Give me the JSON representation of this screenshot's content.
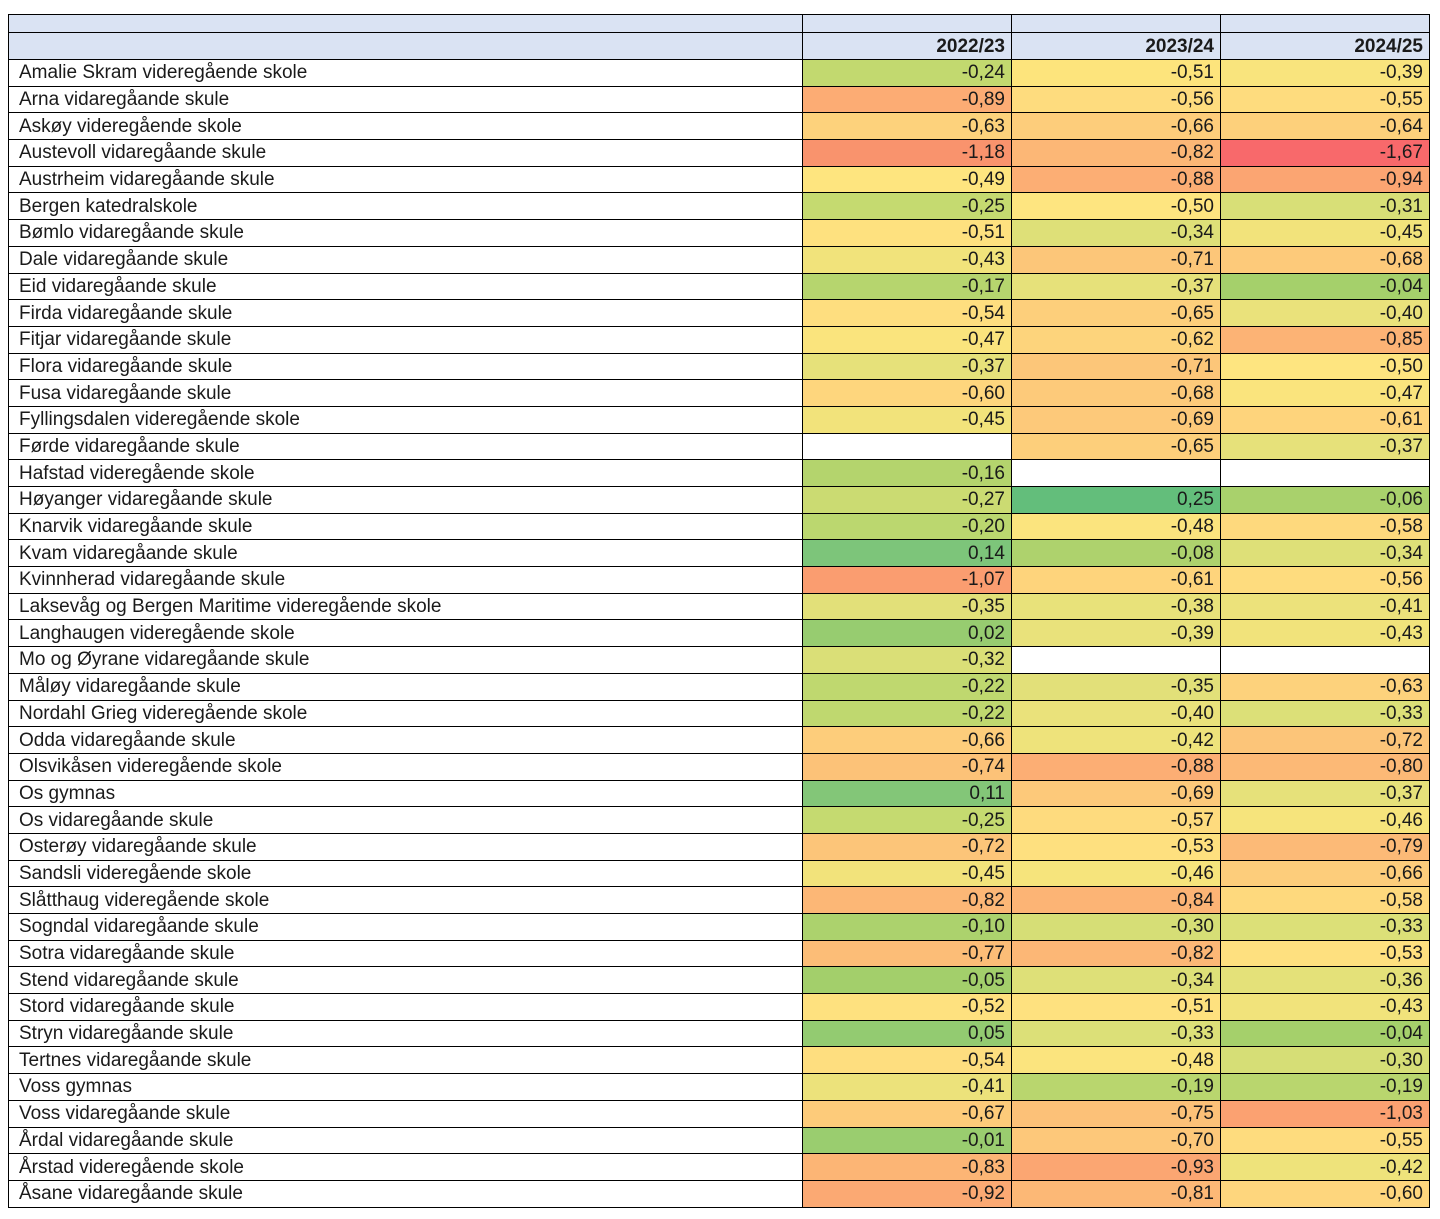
{
  "columns": [
    "2022/23",
    "2023/24",
    "2024/25"
  ],
  "rows": [
    {
      "school": "Amalie Skram videregående skole",
      "values": [
        "-0,24",
        "-0,51",
        "-0,39"
      ],
      "colors": [
        "#c2d96f",
        "#fde47c",
        "#f9e47d"
      ]
    },
    {
      "school": "Arna vidaregåande skule",
      "values": [
        "-0,89",
        "-0,56",
        "-0,55"
      ],
      "colors": [
        "#fcac74",
        "#fedc7e",
        "#fedc7e"
      ]
    },
    {
      "school": "Askøy videregående skole",
      "values": [
        "-0,63",
        "-0,66",
        "-0,64"
      ],
      "colors": [
        "#fdd27c",
        "#fdcd7b",
        "#fdd07b"
      ]
    },
    {
      "school": "Austevoll vidaregåande skule",
      "values": [
        "-1,18",
        "-0,82",
        "-1,67"
      ],
      "colors": [
        "#f9936d",
        "#fcb776",
        "#f8696b"
      ]
    },
    {
      "school": "Austrheim vidaregåande skule",
      "values": [
        "-0,49",
        "-0,88",
        "-0,94"
      ],
      "colors": [
        "#fee57f",
        "#fcae74",
        "#fba572"
      ]
    },
    {
      "school": "Bergen katedralskole",
      "values": [
        "-0,25",
        "-0,50",
        "-0,31"
      ],
      "colors": [
        "#c5da70",
        "#fee580",
        "#d8df77"
      ]
    },
    {
      "school": "Bømlo vidaregåande skule",
      "values": [
        "-0,51",
        "-0,34",
        "-0,45"
      ],
      "colors": [
        "#fee17f",
        "#dee078",
        "#f2e37b"
      ]
    },
    {
      "school": "Dale vidaregåande skule",
      "values": [
        "-0,43",
        "-0,71",
        "-0,68"
      ],
      "colors": [
        "#f1e37b",
        "#fcc679",
        "#fdca7a"
      ]
    },
    {
      "school": "Eid vidaregåande skule",
      "values": [
        "-0,17",
        "-0,37",
        "-0,04"
      ],
      "colors": [
        "#b6d56e",
        "#e6e17a",
        "#a5d06b"
      ]
    },
    {
      "school": "Firda vidaregåande skule",
      "values": [
        "-0,54",
        "-0,65",
        "-0,40"
      ],
      "colors": [
        "#fede7f",
        "#fdcf7b",
        "#eae27b"
      ]
    },
    {
      "school": "Fitjar vidaregåande skule",
      "values": [
        "-0,47",
        "-0,62",
        "-0,85"
      ],
      "colors": [
        "#fae47d",
        "#fdd47c",
        "#fcb375"
      ]
    },
    {
      "school": "Flora vidaregåande skule",
      "values": [
        "-0,37",
        "-0,71",
        "-0,50"
      ],
      "colors": [
        "#e6e17a",
        "#fcc679",
        "#fee580"
      ]
    },
    {
      "school": "Fusa vidaregåande skule",
      "values": [
        "-0,60",
        "-0,68",
        "-0,47"
      ],
      "colors": [
        "#fed67d",
        "#fdca7a",
        "#fae47d"
      ]
    },
    {
      "school": "Fyllingsdalen videregående skole",
      "values": [
        "-0,45",
        "-0,69",
        "-0,61"
      ],
      "colors": [
        "#f2e37b",
        "#fdc97a",
        "#fed47c"
      ]
    },
    {
      "school": "Førde vidaregåande skule",
      "values": [
        "",
        "-0,65",
        "-0,37"
      ],
      "colors": [
        "#ffffff",
        "#fdcf7b",
        "#e6e17a"
      ]
    },
    {
      "school": "Hafstad videregående skole",
      "values": [
        "-0,16",
        "",
        ""
      ],
      "colors": [
        "#b4d46d",
        "#ffffff",
        "#ffffff"
      ]
    },
    {
      "school": "Høyanger vidaregåande skule",
      "values": [
        "-0,27",
        "0,25",
        "-0,06"
      ],
      "colors": [
        "#cbdb72",
        "#63be7b",
        "#a9d16c"
      ]
    },
    {
      "school": "Knarvik vidaregåande skule",
      "values": [
        "-0,20",
        "-0,48",
        "-0,58"
      ],
      "colors": [
        "#bbd76f",
        "#fbe47e",
        "#fed97d"
      ]
    },
    {
      "school": "Kvam vidaregåande skule",
      "values": [
        "0,14",
        "-0,08",
        "-0,34"
      ],
      "colors": [
        "#7dc57a",
        "#aed26d",
        "#dee078"
      ]
    },
    {
      "school": "Kvinnherad vidaregåande skule",
      "values": [
        "-1,07",
        "-0,61",
        "-0,56"
      ],
      "colors": [
        "#fa9d70",
        "#fed47c",
        "#fedc7e"
      ]
    },
    {
      "school": "Laksevåg og Bergen Maritime videregående skole",
      "values": [
        "-0,35",
        "-0,38",
        "-0,41"
      ],
      "colors": [
        "#e2e079",
        "#e8e27a",
        "#ece27b"
      ]
    },
    {
      "school": "Langhaugen videregående skole",
      "values": [
        "0,02",
        "-0,39",
        "-0,43"
      ],
      "colors": [
        "#97cc70",
        "#e9e27b",
        "#f1e37b"
      ]
    },
    {
      "school": "Mo og Øyrane vidaregåande skule",
      "values": [
        "-0,32",
        "",
        ""
      ],
      "colors": [
        "#dadf77",
        "#ffffff",
        "#ffffff"
      ]
    },
    {
      "school": "Måløy vidaregåande skule",
      "values": [
        "-0,22",
        "-0,35",
        "-0,63"
      ],
      "colors": [
        "#bfd86f",
        "#e2e079",
        "#fdd27c"
      ]
    },
    {
      "school": "Nordahl Grieg videregående skole",
      "values": [
        "-0,22",
        "-0,40",
        "-0,33"
      ],
      "colors": [
        "#bfd86f",
        "#eae27b",
        "#dce078"
      ]
    },
    {
      "school": "Odda vidaregåande skule",
      "values": [
        "-0,66",
        "-0,42",
        "-0,72"
      ],
      "colors": [
        "#fdcd7b",
        "#eee37b",
        "#fcc579"
      ]
    },
    {
      "school": "Olsvikåsen videregående skole",
      "values": [
        "-0,74",
        "-0,88",
        "-0,80"
      ],
      "colors": [
        "#fcc278",
        "#fcae74",
        "#fcb976"
      ]
    },
    {
      "school": "Os gymnas",
      "values": [
        "0,11",
        "-0,69",
        "-0,37"
      ],
      "colors": [
        "#83c678",
        "#fdc97a",
        "#e6e17a"
      ]
    },
    {
      "school": "Os vidaregåande skule",
      "values": [
        "-0,25",
        "-0,57",
        "-0,46"
      ],
      "colors": [
        "#c5da70",
        "#fedb7e",
        "#f6e47c"
      ]
    },
    {
      "school": "Osterøy vidaregåande skule",
      "values": [
        "-0,72",
        "-0,53",
        "-0,79"
      ],
      "colors": [
        "#fcc579",
        "#fee07f",
        "#fcba77"
      ]
    },
    {
      "school": "Sandsli videregående skole",
      "values": [
        "-0,45",
        "-0,46",
        "-0,66"
      ],
      "colors": [
        "#f2e37b",
        "#f6e47c",
        "#fdcd7b"
      ]
    },
    {
      "school": "Slåtthaug videregående skole",
      "values": [
        "-0,82",
        "-0,84",
        "-0,58"
      ],
      "colors": [
        "#fcb776",
        "#fcb475",
        "#fed97d"
      ]
    },
    {
      "school": "Sogndal vidaregåande skule",
      "values": [
        "-0,10",
        "-0,30",
        "-0,33"
      ],
      "colors": [
        "#acd26d",
        "#d6de76",
        "#dce078"
      ]
    },
    {
      "school": "Sotra vidaregåande skule",
      "values": [
        "-0,77",
        "-0,82",
        "-0,53"
      ],
      "colors": [
        "#fcbd77",
        "#fcb776",
        "#fee07f"
      ]
    },
    {
      "school": "Stend vidaregåande skule",
      "values": [
        "-0,05",
        "-0,34",
        "-0,36"
      ],
      "colors": [
        "#a3cf6b",
        "#dee078",
        "#e4e179"
      ]
    },
    {
      "school": "Stord vidaregåande skule",
      "values": [
        "-0,52",
        "-0,51",
        "-0,43"
      ],
      "colors": [
        "#fee17f",
        "#fee17f",
        "#f1e37b"
      ]
    },
    {
      "school": "Stryn vidaregåande skule",
      "values": [
        "0,05",
        "-0,33",
        "-0,04"
      ],
      "colors": [
        "#93cb71",
        "#dce078",
        "#a5d06b"
      ]
    },
    {
      "school": "Tertnes vidaregåande skule",
      "values": [
        "-0,54",
        "-0,48",
        "-0,30"
      ],
      "colors": [
        "#fede7f",
        "#fbe47e",
        "#d6de76"
      ]
    },
    {
      "school": "Voss gymnas",
      "values": [
        "-0,41",
        "-0,19",
        "-0,19"
      ],
      "colors": [
        "#ece27b",
        "#b9d66e",
        "#b9d66e"
      ]
    },
    {
      "school": "Voss vidaregåande skule",
      "values": [
        "-0,67",
        "-0,75",
        "-1,03"
      ],
      "colors": [
        "#fdcb7a",
        "#fcc178",
        "#fba171"
      ]
    },
    {
      "school": "Årdal vidaregåande skule",
      "values": [
        "-0,01",
        "-0,70",
        "-0,55"
      ],
      "colors": [
        "#9acd6f",
        "#fdc87a",
        "#fedc7e"
      ]
    },
    {
      "school": "Årstad videregående skole",
      "values": [
        "-0,83",
        "-0,93",
        "-0,42"
      ],
      "colors": [
        "#fcb575",
        "#fba672",
        "#eee37b"
      ]
    },
    {
      "school": "Åsane vidaregåande skule",
      "values": [
        "-0,92",
        "-0,81",
        "-0,60"
      ],
      "colors": [
        "#fba973",
        "#fcb876",
        "#fed67d"
      ]
    }
  ]
}
